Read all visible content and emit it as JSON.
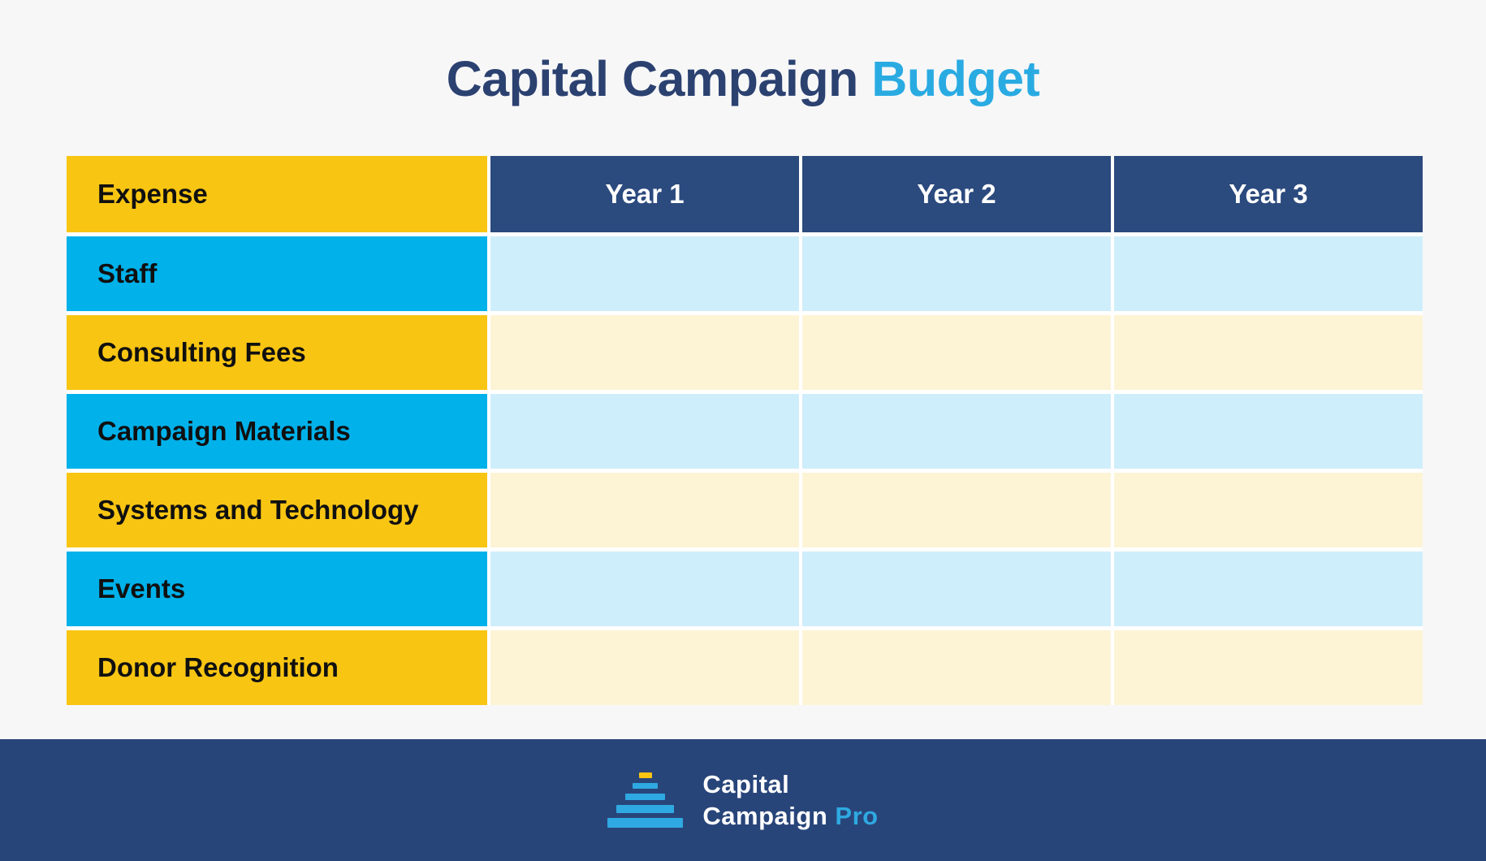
{
  "title": {
    "main": "Capital Campaign",
    "accent": "Budget"
  },
  "table": {
    "header": {
      "expense": "Expense",
      "years": [
        "Year 1",
        "Year 2",
        "Year 3"
      ]
    },
    "rows": [
      {
        "label": "Staff",
        "values": [
          "",
          "",
          ""
        ]
      },
      {
        "label": "Consulting Fees",
        "values": [
          "",
          "",
          ""
        ]
      },
      {
        "label": "Campaign Materials",
        "values": [
          "",
          "",
          ""
        ]
      },
      {
        "label": "Systems and Technology",
        "values": [
          "",
          "",
          ""
        ]
      },
      {
        "label": "Events",
        "values": [
          "",
          "",
          ""
        ]
      },
      {
        "label": "Donor Recognition",
        "values": [
          "",
          "",
          ""
        ]
      }
    ]
  },
  "footer": {
    "logo_line1": "Capital",
    "logo_line2": "Campaign",
    "logo_accent": "Pro"
  },
  "colors": {
    "page_bg": "#F7F7F8",
    "title_navy": "#2B4170",
    "accent_blue": "#29ABE2",
    "navy_header": "#2B4A7E",
    "navy_footer": "#28457A",
    "yellow": "#F8C513",
    "cyan": "#00B1EA",
    "cell_blue": "#CFEEFB",
    "cell_cream": "#FDF4D6",
    "logo_blue": "#2FA9E1",
    "label_text": "#101010"
  }
}
